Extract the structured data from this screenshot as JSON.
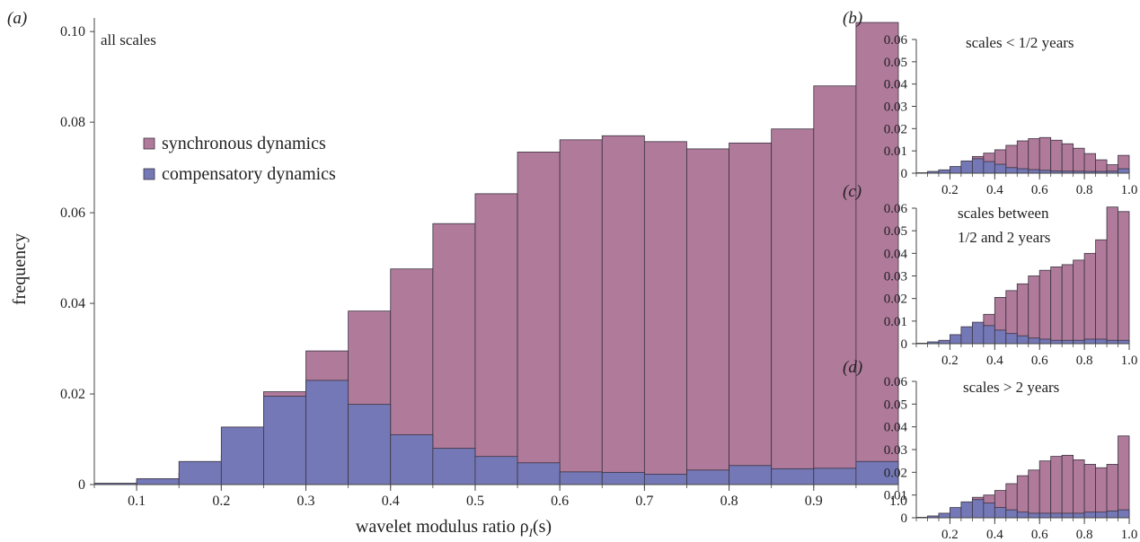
{
  "chart_data": [
    {
      "id": "a",
      "panel_label": "(a)",
      "type": "bar",
      "stacked": "overlaid",
      "annotation": "all scales",
      "ylabel": "frequency",
      "xlabel": "wavelet modulus ratio ρ",
      "xlabel_sub": "I",
      "xlabel_tail": "(s)",
      "bin_width": 0.05,
      "x": [
        0.05,
        0.1,
        0.15,
        0.2,
        0.25,
        0.3,
        0.35,
        0.4,
        0.45,
        0.5,
        0.55,
        0.6,
        0.65,
        0.7,
        0.75,
        0.8,
        0.85,
        0.9,
        0.95
      ],
      "xlim": [
        0.05,
        1.0
      ],
      "ylim": [
        0,
        0.103
      ],
      "xticks": [
        0.1,
        0.2,
        0.3,
        0.4,
        0.5,
        0.6,
        0.7,
        0.8,
        0.9,
        1.0
      ],
      "xtick_labels": [
        "0.1",
        "0.2",
        "0.3",
        "0.4",
        "0.5",
        "0.6",
        "0.7",
        "0.8",
        "0.9",
        "1.0"
      ],
      "yticks": [
        0,
        0.02,
        0.04,
        0.06,
        0.08,
        0.1
      ],
      "ytick_labels": [
        "0",
        "0.02",
        "0.04",
        "0.06",
        "0.08",
        "0.10"
      ],
      "legend_position": "center-left",
      "series": [
        {
          "name": "synchronous dynamics",
          "color": "#b07a9b",
          "values": [
            0.0002,
            0.0008,
            0.0025,
            0.0065,
            0.0205,
            0.0295,
            0.0383,
            0.0476,
            0.0576,
            0.0642,
            0.0734,
            0.0761,
            0.077,
            0.0757,
            0.0741,
            0.0754,
            0.0785,
            0.088,
            0.102
          ]
        },
        {
          "name": "compensatory dynamics",
          "color": "#7478b6",
          "values": [
            0.0003,
            0.0013,
            0.0051,
            0.0127,
            0.0195,
            0.023,
            0.0177,
            0.011,
            0.008,
            0.0062,
            0.0048,
            0.0028,
            0.0027,
            0.0023,
            0.0032,
            0.0042,
            0.0035,
            0.0036,
            0.0051
          ]
        }
      ]
    },
    {
      "id": "b",
      "panel_label": "(b)",
      "type": "bar",
      "stacked": "overlaid",
      "annotation": "scales < 1/2 years",
      "bin_width": 0.05,
      "x": [
        0.05,
        0.1,
        0.15,
        0.2,
        0.25,
        0.3,
        0.35,
        0.4,
        0.45,
        0.5,
        0.55,
        0.6,
        0.65,
        0.7,
        0.75,
        0.8,
        0.85,
        0.9,
        0.95
      ],
      "xlim": [
        0.05,
        1.0
      ],
      "ylim": [
        0,
        0.06
      ],
      "xticks": [
        0.2,
        0.4,
        0.6,
        0.8,
        1.0
      ],
      "xtick_labels": [
        "0.2",
        "0.4",
        "0.6",
        "0.8",
        "1.0"
      ],
      "yticks": [
        0,
        0.01,
        0.02,
        0.03,
        0.04,
        0.05,
        0.06
      ],
      "ytick_labels": [
        "0",
        "0.01",
        "0.02",
        "0.03",
        "0.04",
        "0.05",
        "0.06"
      ],
      "series": [
        {
          "name": "synchronous dynamics",
          "color": "#b07a9b",
          "values": [
            0.0001,
            0.0003,
            0.0008,
            0.002,
            0.0045,
            0.0075,
            0.009,
            0.0105,
            0.0125,
            0.0145,
            0.0155,
            0.016,
            0.0148,
            0.0132,
            0.0112,
            0.0088,
            0.006,
            0.0038,
            0.008
          ]
        },
        {
          "name": "compensatory dynamics",
          "color": "#7478b6",
          "values": [
            0.0002,
            0.0008,
            0.0015,
            0.003,
            0.0055,
            0.0065,
            0.0052,
            0.004,
            0.0025,
            0.002,
            0.0016,
            0.0013,
            0.001,
            0.0009,
            0.0009,
            0.0008,
            0.0008,
            0.0009,
            0.002
          ]
        }
      ]
    },
    {
      "id": "c",
      "panel_label": "(c)",
      "type": "bar",
      "stacked": "overlaid",
      "annotation_lines": [
        "scales between",
        "1/2 and 2 years"
      ],
      "bin_width": 0.05,
      "x": [
        0.05,
        0.1,
        0.15,
        0.2,
        0.25,
        0.3,
        0.35,
        0.4,
        0.45,
        0.5,
        0.55,
        0.6,
        0.65,
        0.7,
        0.75,
        0.8,
        0.85,
        0.9,
        0.95
      ],
      "xlim": [
        0.05,
        1.0
      ],
      "ylim": [
        0,
        0.06
      ],
      "xticks": [
        0.2,
        0.4,
        0.6,
        0.8,
        1.0
      ],
      "xtick_labels": [
        "0.2",
        "0.4",
        "0.6",
        "0.8",
        "1.0"
      ],
      "yticks": [
        0,
        0.01,
        0.02,
        0.03,
        0.04,
        0.05,
        0.06
      ],
      "ytick_labels": [
        "0",
        "0.01",
        "0.02",
        "0.03",
        "0.04",
        "0.05",
        "0.06"
      ],
      "series": [
        {
          "name": "synchronous dynamics",
          "color": "#b07a9b",
          "values": [
            0.0001,
            0.0002,
            0.0006,
            0.0015,
            0.004,
            0.0075,
            0.013,
            0.0205,
            0.0235,
            0.0265,
            0.03,
            0.0325,
            0.034,
            0.035,
            0.037,
            0.04,
            0.046,
            0.0605,
            0.0585
          ]
        },
        {
          "name": "compensatory dynamics",
          "color": "#7478b6",
          "values": [
            0.0002,
            0.0008,
            0.0015,
            0.004,
            0.0075,
            0.0095,
            0.008,
            0.006,
            0.0045,
            0.0035,
            0.0025,
            0.002,
            0.0015,
            0.0015,
            0.0015,
            0.002,
            0.002,
            0.0015,
            0.0015
          ]
        }
      ]
    },
    {
      "id": "d",
      "panel_label": "(d)",
      "type": "bar",
      "stacked": "overlaid",
      "annotation": "scales > 2 years",
      "bin_width": 0.05,
      "x": [
        0.05,
        0.1,
        0.15,
        0.2,
        0.25,
        0.3,
        0.35,
        0.4,
        0.45,
        0.5,
        0.55,
        0.6,
        0.65,
        0.7,
        0.75,
        0.8,
        0.85,
        0.9,
        0.95
      ],
      "xlim": [
        0.05,
        1.0
      ],
      "ylim": [
        0,
        0.06
      ],
      "xticks": [
        0.2,
        0.4,
        0.6,
        0.8,
        1.0
      ],
      "xtick_labels": [
        "0.2",
        "0.4",
        "0.6",
        "0.8",
        "1.0"
      ],
      "yticks": [
        0,
        0.01,
        0.02,
        0.03,
        0.04,
        0.05,
        0.06
      ],
      "ytick_labels": [
        "0",
        "0.01",
        "0.02",
        "0.03",
        "0.04",
        "0.05",
        "0.06"
      ],
      "series": [
        {
          "name": "synchronous dynamics",
          "color": "#b07a9b",
          "values": [
            0.0001,
            0.0003,
            0.001,
            0.003,
            0.006,
            0.009,
            0.01,
            0.012,
            0.015,
            0.0185,
            0.021,
            0.025,
            0.027,
            0.0275,
            0.0255,
            0.0235,
            0.022,
            0.0235,
            0.036
          ]
        },
        {
          "name": "compensatory dynamics",
          "color": "#7478b6",
          "values": [
            0.0002,
            0.0008,
            0.002,
            0.0045,
            0.007,
            0.008,
            0.0065,
            0.0045,
            0.0035,
            0.0025,
            0.002,
            0.002,
            0.002,
            0.002,
            0.002,
            0.0025,
            0.0025,
            0.003,
            0.0035
          ]
        }
      ]
    }
  ]
}
